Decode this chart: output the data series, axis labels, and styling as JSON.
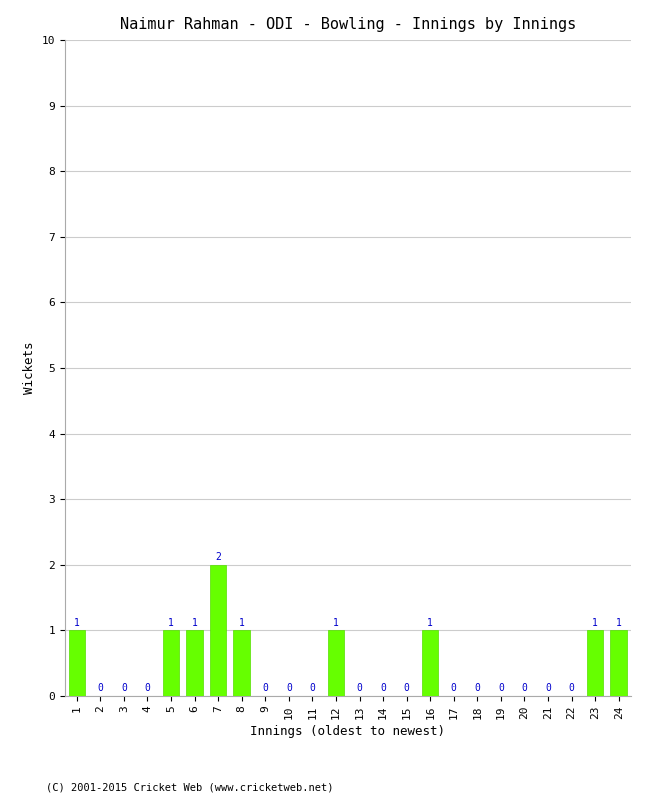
{
  "title": "Naimur Rahman - ODI - Bowling - Innings by Innings",
  "xlabel": "Innings (oldest to newest)",
  "ylabel": "Wickets",
  "innings": [
    1,
    2,
    3,
    4,
    5,
    6,
    7,
    8,
    9,
    10,
    11,
    12,
    13,
    14,
    15,
    16,
    17,
    18,
    19,
    20,
    21,
    22,
    23,
    24
  ],
  "wickets": [
    1,
    0,
    0,
    0,
    1,
    1,
    2,
    1,
    0,
    0,
    0,
    1,
    0,
    0,
    0,
    1,
    0,
    0,
    0,
    0,
    0,
    0,
    1,
    1
  ],
  "bar_color": "#66ff00",
  "bar_edge_color": "#55dd00",
  "label_color": "#0000cc",
  "ylim": [
    0,
    10
  ],
  "yticks": [
    0,
    1,
    2,
    3,
    4,
    5,
    6,
    7,
    8,
    9,
    10
  ],
  "background_color": "#ffffff",
  "grid_color": "#cccccc",
  "title_fontsize": 11,
  "axis_label_fontsize": 9,
  "tick_fontsize": 8,
  "bar_label_fontsize": 7,
  "footer_text": "(C) 2001-2015 Cricket Web (www.cricketweb.net)"
}
